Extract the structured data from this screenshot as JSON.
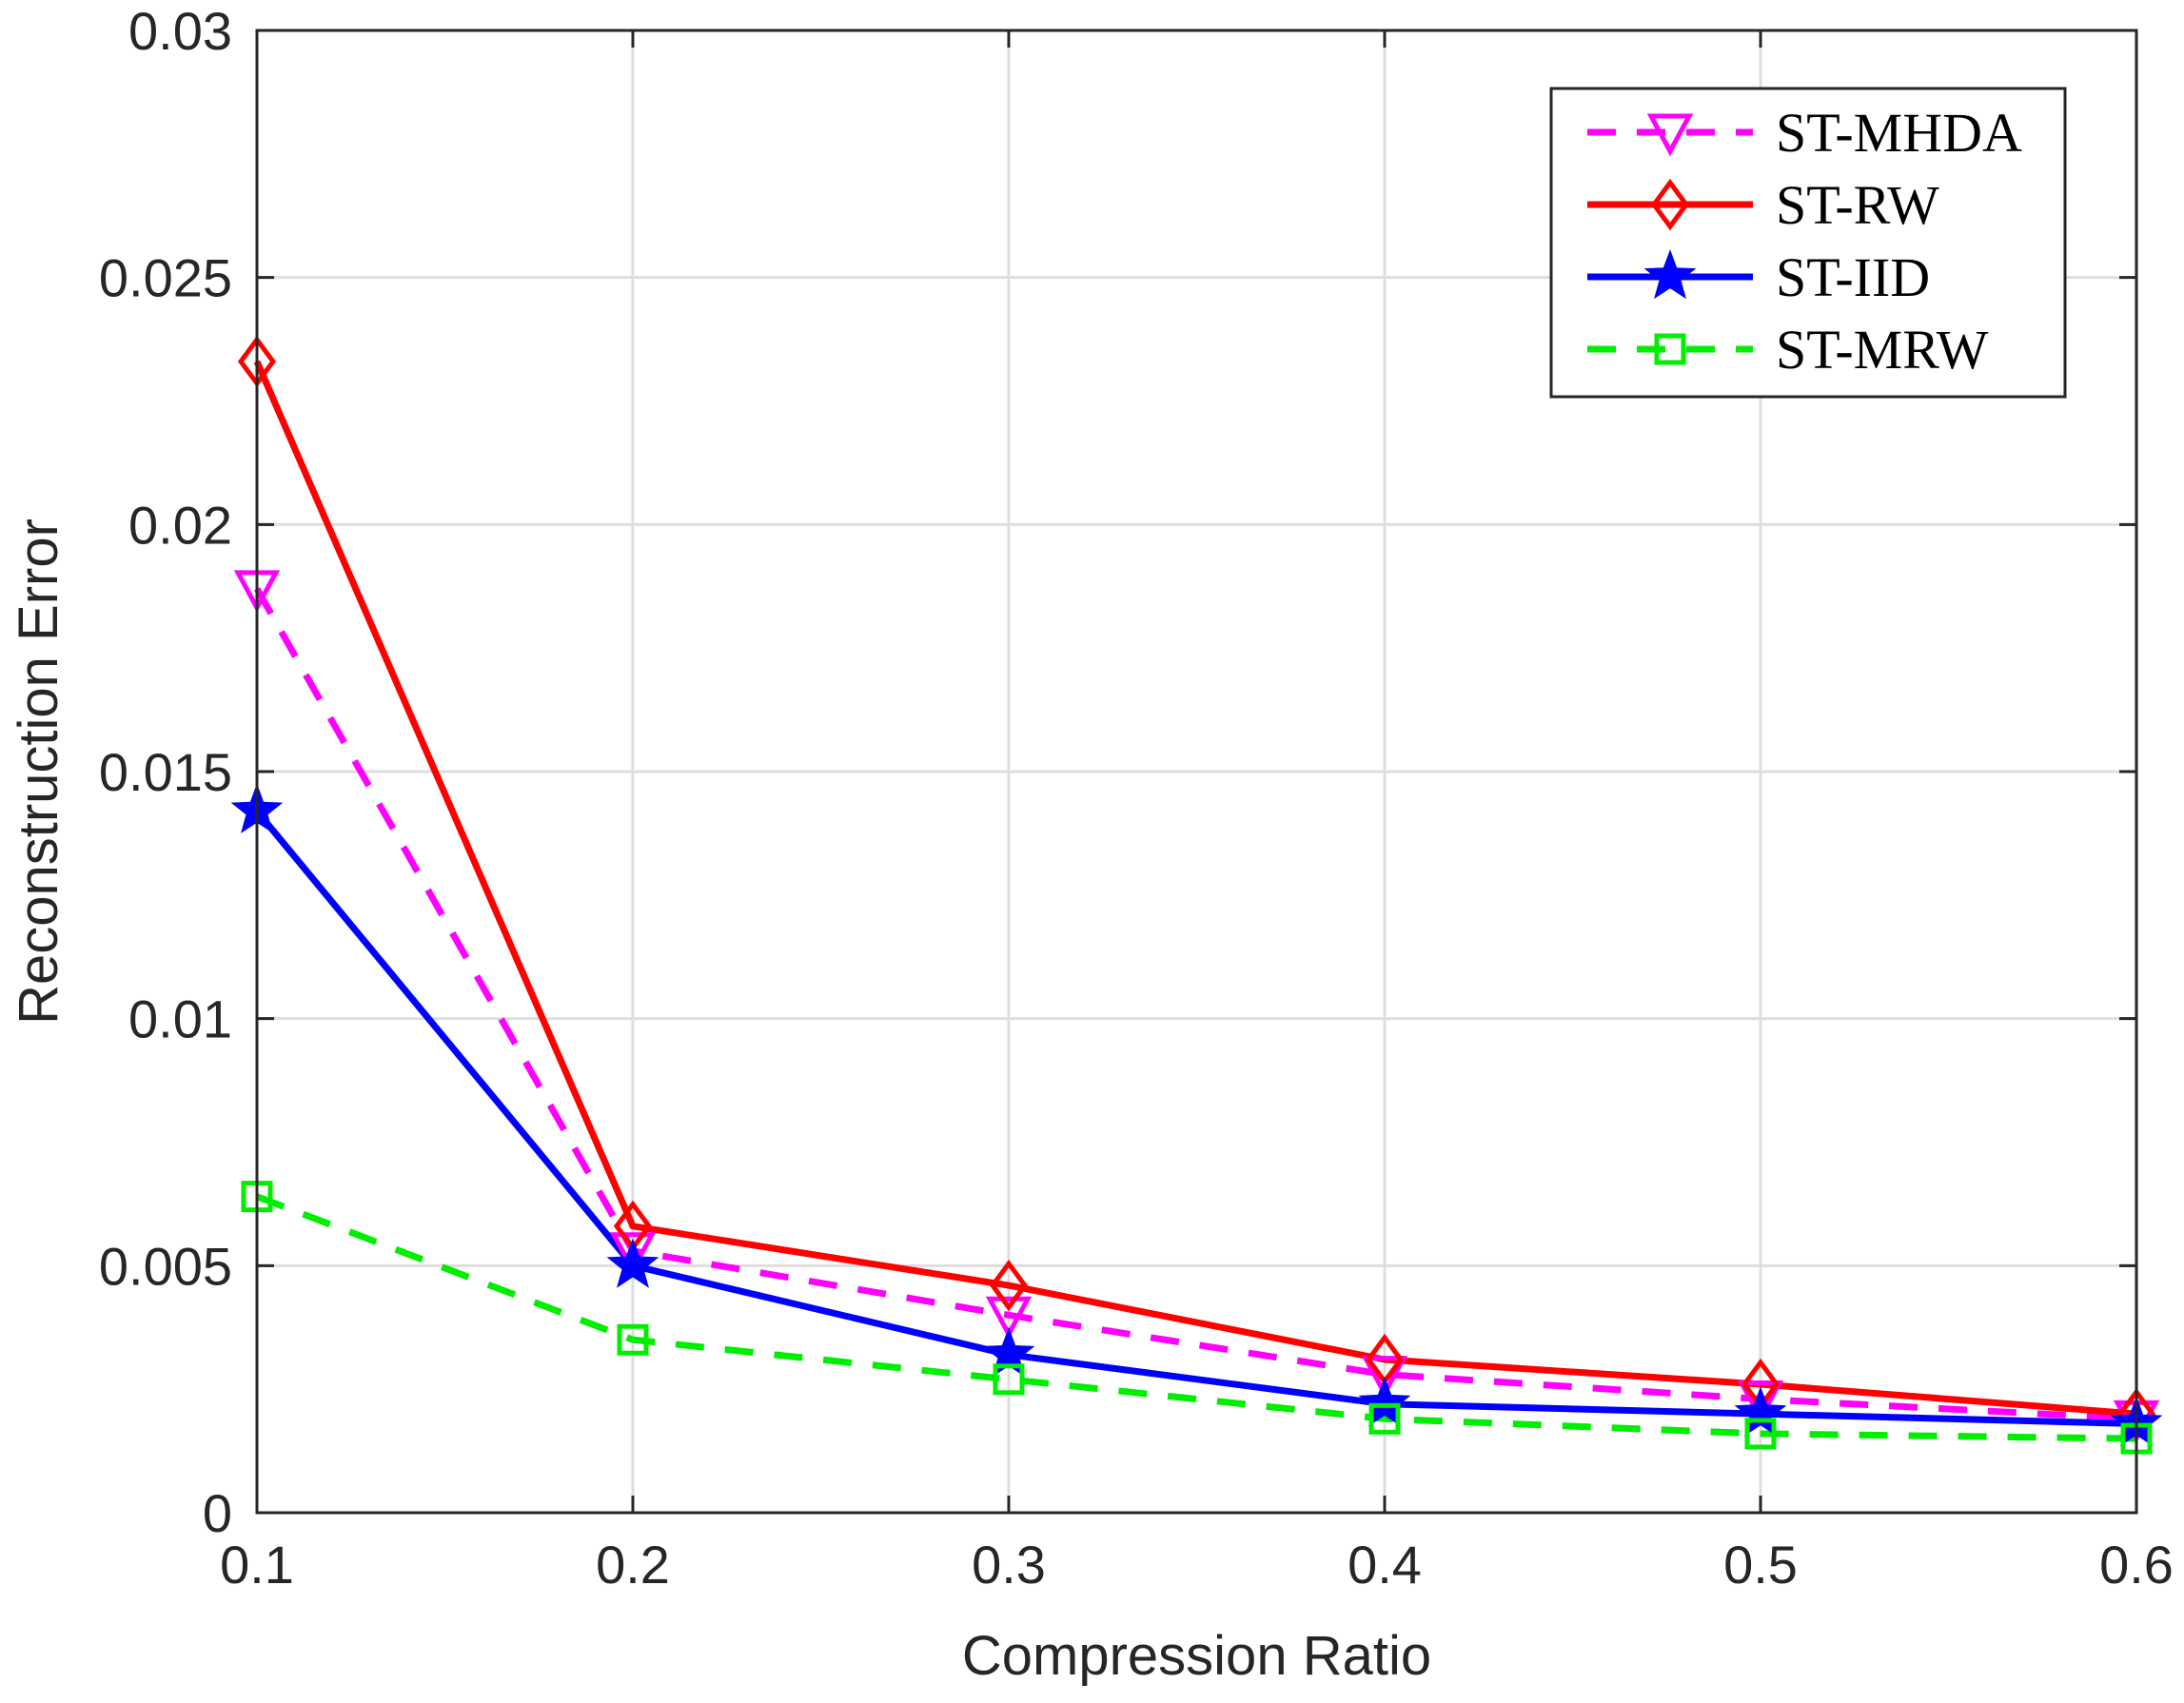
{
  "chart_data": {
    "type": "line",
    "title": "",
    "xlabel": "Compression Ratio",
    "ylabel": "Reconstruction Error",
    "x": [
      0.1,
      0.2,
      0.3,
      0.4,
      0.5,
      0.6
    ],
    "xlim": [
      0.1,
      0.6
    ],
    "ylim": [
      0,
      0.03
    ],
    "x_ticks": [
      "0.1",
      "0.2",
      "0.3",
      "0.4",
      "0.5",
      "0.6"
    ],
    "y_ticks": [
      "0",
      "0.005",
      "0.01",
      "0.015",
      "0.02",
      "0.025",
      "0.03"
    ],
    "grid": true,
    "legend_position": "top-right",
    "series": [
      {
        "name": "ST-MHDA",
        "color": "#ff00ff",
        "line": "dashed",
        "marker": "triangle-down-icon",
        "values": [
          0.0187,
          0.0053,
          0.004,
          0.0028,
          0.0023,
          0.0019
        ]
      },
      {
        "name": "ST-RW",
        "color": "#ff0000",
        "line": "solid",
        "marker": "diamond-icon",
        "values": [
          0.0233,
          0.0058,
          0.0046,
          0.0031,
          0.0026,
          0.002
        ]
      },
      {
        "name": "ST-IID",
        "color": "#0000ff",
        "line": "solid",
        "marker": "star-icon",
        "values": [
          0.0142,
          0.005,
          0.0032,
          0.0022,
          0.002,
          0.0018
        ]
      },
      {
        "name": "ST-MRW",
        "color": "#00ee00",
        "line": "dashed",
        "marker": "square-icon",
        "values": [
          0.0064,
          0.0035,
          0.0027,
          0.0019,
          0.0016,
          0.0015
        ]
      }
    ]
  }
}
